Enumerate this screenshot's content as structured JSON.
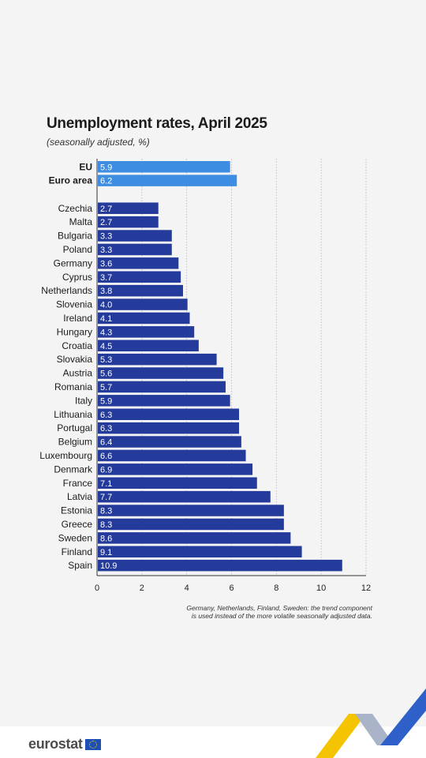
{
  "header": {
    "title": "Unemployment rates, April 2025",
    "subtitle": "(seasonally adjusted, %)"
  },
  "footnote": {
    "line1": "Germany, Netherlands, Finland, Sweden: the trend component",
    "line2": "is used instead of the more volatile seasonally adjusted data."
  },
  "brand": {
    "logo_text": "eurostat",
    "flag_icon": "eu-flag-icon"
  },
  "colors": {
    "aggregate_bar": "#3d8ee2",
    "country_bar": "#243b9b",
    "background": "#f4f4f4"
  },
  "chart_data": {
    "type": "bar",
    "orientation": "horizontal",
    "title": "Unemployment rates, April 2025",
    "subtitle": "(seasonally adjusted, %)",
    "xlim": [
      0,
      12
    ],
    "xticks": [
      0,
      2,
      4,
      6,
      8,
      10,
      12
    ],
    "grid": true,
    "aggregates": {
      "categories": [
        "EU",
        "Euro area"
      ],
      "values": [
        5.9,
        6.2
      ],
      "labels": [
        "5.9",
        "6.2"
      ]
    },
    "countries": {
      "categories": [
        "Czechia",
        "Malta",
        "Bulgaria",
        "Poland",
        "Germany",
        "Cyprus",
        "Netherlands",
        "Slovenia",
        "Ireland",
        "Hungary",
        "Croatia",
        "Slovakia",
        "Austria",
        "Romania",
        "Italy",
        "Lithuania",
        "Portugal",
        "Belgium",
        "Luxembourg",
        "Denmark",
        "France",
        "Latvia",
        "Estonia",
        "Greece",
        "Sweden",
        "Finland",
        "Spain"
      ],
      "values": [
        2.7,
        2.7,
        3.3,
        3.3,
        3.6,
        3.7,
        3.8,
        4.0,
        4.1,
        4.3,
        4.5,
        5.3,
        5.6,
        5.7,
        5.9,
        6.3,
        6.3,
        6.4,
        6.6,
        6.9,
        7.1,
        7.7,
        8.3,
        8.3,
        8.6,
        9.1,
        10.9
      ],
      "labels": [
        "2.7",
        "2.7",
        "3.3",
        "3.3",
        "3.6",
        "3.7",
        "3.8",
        "4.0",
        "4.1",
        "4.3",
        "4.5",
        "5.3",
        "5.6",
        "5.7",
        "5.9",
        "6.3",
        "6.3",
        "6.4",
        "6.6",
        "6.9",
        "7.1",
        "7.7",
        "8.3",
        "8.3",
        "8.6",
        "9.1",
        "10.9"
      ]
    }
  }
}
